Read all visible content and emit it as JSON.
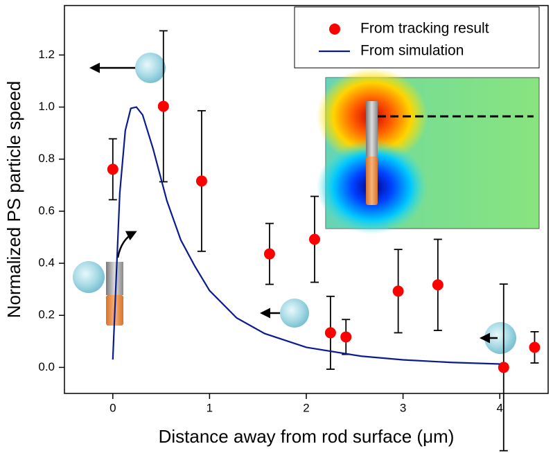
{
  "chart_data": {
    "type": "scatter",
    "x_label": "Distance away from rod surface (μm)",
    "y_label": "Normalized PS particle speed",
    "xlim": [
      -0.5,
      4.5
    ],
    "ylim": [
      -0.1,
      1.39
    ],
    "xticks": [
      0,
      1,
      2,
      3,
      4
    ],
    "yticks": [
      {
        "value": 0,
        "label": "0.0"
      },
      0.2,
      0.4,
      0.6,
      0.8,
      {
        "value": 1,
        "label": "1.0"
      },
      1.2
    ],
    "legend": "upper right",
    "series": [
      {
        "type": "scatter",
        "name": "From tracking result",
        "color": "#ff0000",
        "x": [
          0,
          0.523,
          0.918,
          1.62,
          2.086,
          2.25,
          2.41,
          2.95,
          3.36,
          4.04,
          4.36
        ],
        "values": [
          0.761,
          1.003,
          0.716,
          0.436,
          0.492,
          0.133,
          0.117,
          0.293,
          0.317,
          0.0,
          0.077
        ],
        "errors": [
          0.117,
          0.29,
          0.27,
          0.117,
          0.165,
          0.14,
          0.067,
          0.16,
          0.175,
          0.32,
          0.06
        ]
      },
      {
        "type": "line",
        "name": "From simulation",
        "color": "#0a1a8f",
        "x": [
          0,
          0.029,
          0.072,
          0.129,
          0.186,
          0.244,
          0.308,
          0.416,
          0.559,
          0.702,
          0.846,
          1.0,
          1.28,
          1.57,
          2.0,
          2.57,
          3.0,
          3.5,
          4.0
        ],
        "values": [
          0.03,
          0.29,
          0.67,
          0.91,
          0.995,
          1.0,
          0.97,
          0.84,
          0.64,
          0.49,
          0.39,
          0.295,
          0.19,
          0.13,
          0.077,
          0.043,
          0.029,
          0.019,
          0.013
        ]
      }
    ]
  }
}
